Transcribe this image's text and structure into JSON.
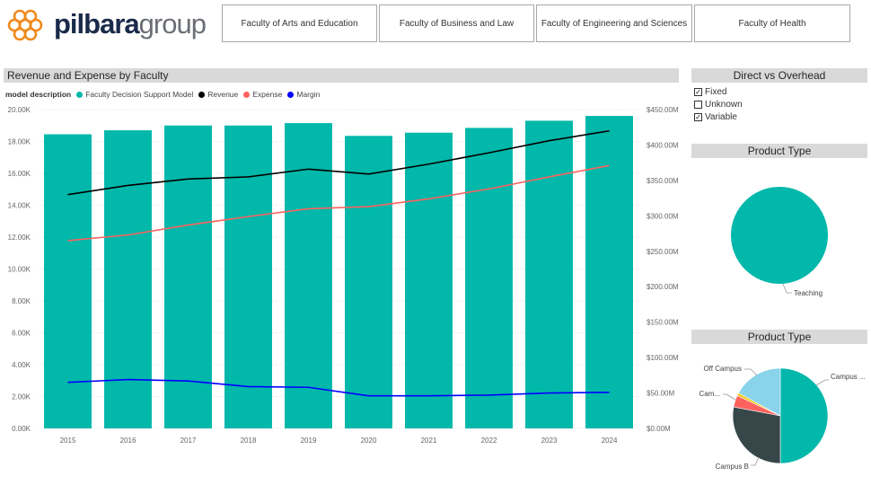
{
  "logo": {
    "part1": "pilbara",
    "part2": "group"
  },
  "faculty_buttons": [
    "Faculty of Arts and Education",
    "Faculty of Business and Law",
    "Faculty of Engineering and Sciences",
    "Faculty of Health"
  ],
  "main_chart": {
    "title": "Revenue and Expense by Faculty",
    "legend_label": "model description",
    "legend_items": [
      {
        "name": "Faculty Decision Support Model",
        "color": "#01b8aa"
      },
      {
        "name": "Revenue",
        "color": "#000000"
      },
      {
        "name": "Expense",
        "color": "#fd625e"
      },
      {
        "name": "Margin",
        "color": "#0000ff"
      }
    ]
  },
  "direct_vs_overhead": {
    "title": "Direct vs Overhead",
    "options": [
      {
        "label": "Fixed",
        "checked": true
      },
      {
        "label": "Unknown",
        "checked": false
      },
      {
        "label": "Variable",
        "checked": true
      }
    ]
  },
  "product_type_1": {
    "title": "Product Type"
  },
  "product_type_2": {
    "title": "Product Type"
  },
  "chart_data": [
    {
      "type": "bar",
      "title": "Revenue and Expense by Faculty",
      "categories": [
        "2015",
        "2016",
        "2017",
        "2018",
        "2019",
        "2020",
        "2021",
        "2022",
        "2023",
        "2024"
      ],
      "y_left_ticks": [
        "0.00K",
        "2.00K",
        "4.00K",
        "6.00K",
        "8.00K",
        "10.00K",
        "12.00K",
        "14.00K",
        "16.00K",
        "18.00K",
        "20.00K"
      ],
      "y_right_ticks": [
        "$0.00M",
        "$50.00M",
        "$100.00M",
        "$150.00M",
        "$200.00M",
        "$250.00M",
        "$300.00M",
        "$350.00M",
        "$400.00M",
        "$450.00M"
      ],
      "ylim_left": [
        0,
        20000
      ],
      "ylim_right": [
        0,
        450
      ],
      "grid": true,
      "legend_position": "top-left",
      "series": [
        {
          "name": "Faculty Decision Support Model",
          "axis": "left",
          "kind": "bar",
          "color": "#01b8aa",
          "values": [
            18450,
            18700,
            19000,
            19000,
            19150,
            18350,
            18550,
            18850,
            19300,
            19600
          ]
        },
        {
          "name": "Revenue",
          "axis": "right",
          "kind": "line",
          "color": "#000000",
          "values": [
            330,
            343,
            352,
            355,
            366,
            359,
            373,
            389,
            406,
            420
          ]
        },
        {
          "name": "Expense",
          "axis": "right",
          "kind": "line",
          "color": "#fd625e",
          "values": [
            265,
            273,
            287,
            299,
            310,
            313,
            324,
            338,
            355,
            371
          ]
        },
        {
          "name": "Margin",
          "axis": "right",
          "kind": "line",
          "color": "#0000ff",
          "values": [
            65,
            69,
            67,
            59,
            58,
            46,
            46,
            47,
            50,
            51
          ]
        }
      ]
    },
    {
      "type": "pie",
      "title": "Product Type",
      "slices": [
        {
          "label": "Teaching",
          "value": 100,
          "color": "#01b8aa"
        }
      ]
    },
    {
      "type": "pie",
      "title": "Product Type",
      "slices": [
        {
          "label": "Campus ...",
          "value": 50,
          "color": "#01b8aa"
        },
        {
          "label": "Campus B",
          "value": 28,
          "color": "#374649"
        },
        {
          "label": "Cam...",
          "value": 4,
          "color": "#fd625e"
        },
        {
          "label": "",
          "value": 1,
          "color": "#f2c80f"
        },
        {
          "label": "Off Campus",
          "value": 17,
          "color": "#8ad4eb"
        }
      ]
    }
  ]
}
